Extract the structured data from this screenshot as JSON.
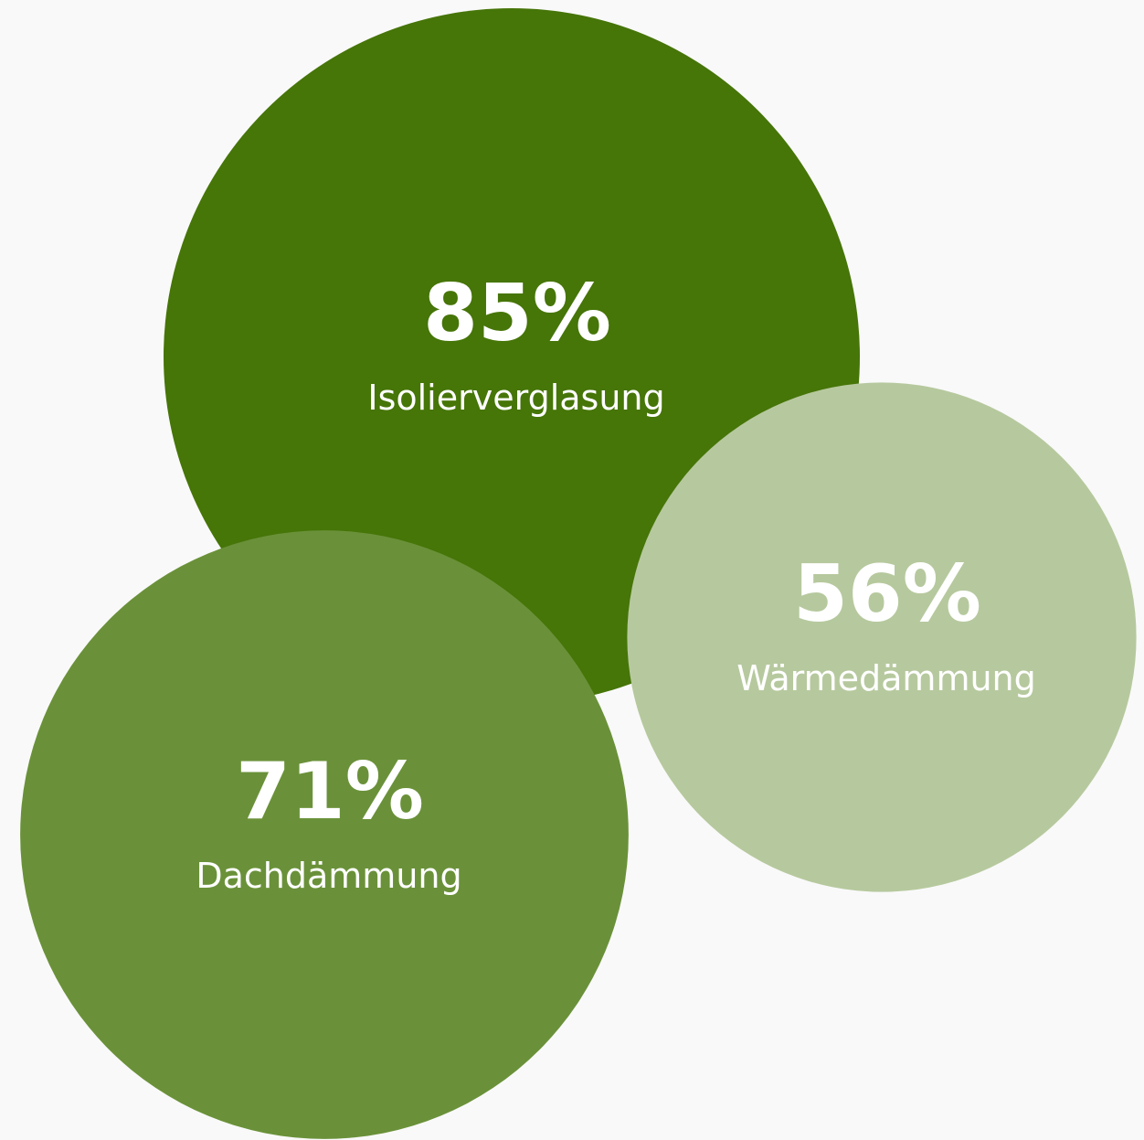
{
  "chart_data": {
    "type": "bubble",
    "categories": [
      "Isolierverglasung",
      "Dachdämmung",
      "Wärmedämmung"
    ],
    "values": [
      85,
      71,
      56
    ],
    "value_labels": [
      "85%",
      "71%",
      "56%"
    ],
    "colors": [
      "#467508",
      "#6a9139",
      "#b6c99e"
    ]
  }
}
